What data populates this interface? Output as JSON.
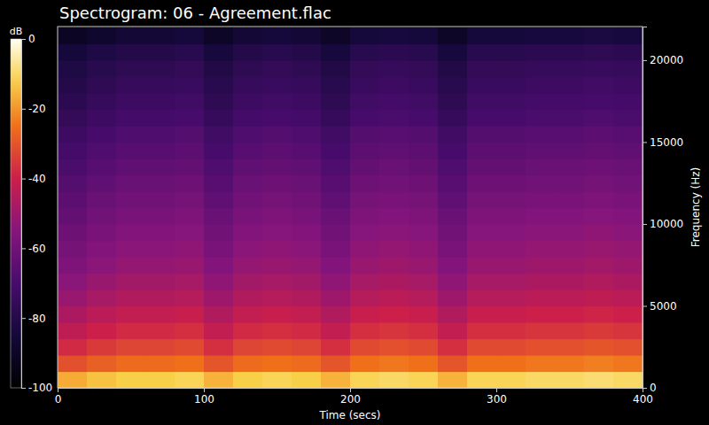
{
  "chart_data": {
    "type": "heatmap",
    "title": "Spectrogram: 06 - Agreement.flac",
    "xlabel": "Time (secs)",
    "ylabel": "Frequency (Hz)",
    "xlim": [
      0,
      400
    ],
    "xticks": [
      0,
      100,
      200,
      300,
      400
    ],
    "ylim": [
      0,
      22050
    ],
    "yticks": [
      0,
      5000,
      10000,
      15000,
      20000
    ],
    "x": [
      10,
      30,
      50,
      70,
      90,
      110,
      130,
      150,
      170,
      190,
      210,
      230,
      250,
      270,
      290,
      310,
      330,
      350,
      370,
      390
    ],
    "y": [
      500,
      1500,
      2500,
      3500,
      4500,
      5500,
      6500,
      7500,
      8500,
      9500,
      10500,
      11500,
      12500,
      13500,
      14500,
      15500,
      16500,
      17500,
      18500,
      19500,
      20500,
      21500
    ],
    "values": [
      [
        -17,
        -14,
        -12,
        -12,
        -11,
        -16,
        -12,
        -11,
        -12,
        -16,
        -11,
        -10,
        -11,
        -16,
        -11,
        -11,
        -10,
        -10,
        -9,
        -10
      ],
      [
        -31,
        -28,
        -26,
        -26,
        -25,
        -30,
        -26,
        -25,
        -26,
        -30,
        -25,
        -24,
        -25,
        -30,
        -25,
        -25,
        -24,
        -24,
        -23,
        -24
      ],
      [
        -38,
        -35,
        -33,
        -33,
        -32,
        -37,
        -33,
        -32,
        -33,
        -37,
        -32,
        -31,
        -32,
        -37,
        -32,
        -32,
        -31,
        -31,
        -30,
        -31
      ],
      [
        -43,
        -40,
        -38,
        -38,
        -37,
        -42,
        -38,
        -37,
        -38,
        -42,
        -37,
        -36,
        -37,
        -42,
        -37,
        -37,
        -36,
        -36,
        -35,
        -36
      ],
      [
        -47,
        -44,
        -42,
        -42,
        -41,
        -46,
        -42,
        -41,
        -42,
        -46,
        -41,
        -40,
        -41,
        -46,
        -41,
        -41,
        -40,
        -40,
        -39,
        -40
      ],
      [
        -51,
        -48,
        -46,
        -46,
        -45,
        -50,
        -46,
        -45,
        -46,
        -50,
        -45,
        -44,
        -45,
        -50,
        -45,
        -45,
        -44,
        -44,
        -43,
        -44
      ],
      [
        -54,
        -51,
        -49,
        -49,
        -48,
        -53,
        -49,
        -48,
        -49,
        -53,
        -48,
        -47,
        -48,
        -53,
        -48,
        -48,
        -47,
        -47,
        -46,
        -47
      ],
      [
        -57,
        -54,
        -52,
        -52,
        -51,
        -56,
        -52,
        -51,
        -52,
        -56,
        -51,
        -50,
        -51,
        -56,
        -51,
        -51,
        -50,
        -50,
        -49,
        -50
      ],
      [
        -59,
        -56,
        -54,
        -54,
        -53,
        -58,
        -54,
        -53,
        -54,
        -58,
        -53,
        -52,
        -53,
        -58,
        -53,
        -53,
        -52,
        -52,
        -51,
        -52
      ],
      [
        -61,
        -58,
        -56,
        -56,
        -55,
        -60,
        -56,
        -55,
        -56,
        -60,
        -55,
        -54,
        -55,
        -60,
        -55,
        -55,
        -54,
        -54,
        -53,
        -54
      ],
      [
        -63,
        -60,
        -58,
        -58,
        -57,
        -62,
        -58,
        -57,
        -58,
        -62,
        -57,
        -56,
        -57,
        -62,
        -57,
        -57,
        -56,
        -56,
        -55,
        -56
      ],
      [
        -65,
        -62,
        -60,
        -60,
        -59,
        -64,
        -60,
        -59,
        -60,
        -64,
        -59,
        -58,
        -59,
        -64,
        -59,
        -59,
        -58,
        -58,
        -57,
        -58
      ],
      [
        -67,
        -64,
        -62,
        -62,
        -61,
        -66,
        -62,
        -61,
        -62,
        -66,
        -61,
        -60,
        -61,
        -66,
        -61,
        -61,
        -60,
        -60,
        -59,
        -60
      ],
      [
        -69,
        -66,
        -64,
        -64,
        -63,
        -68,
        -64,
        -63,
        -64,
        -68,
        -63,
        -62,
        -63,
        -68,
        -63,
        -63,
        -62,
        -62,
        -61,
        -62
      ],
      [
        -71,
        -68,
        -66,
        -66,
        -65,
        -70,
        -66,
        -65,
        -66,
        -70,
        -65,
        -64,
        -65,
        -70,
        -65,
        -65,
        -64,
        -64,
        -63,
        -64
      ],
      [
        -73,
        -70,
        -68,
        -68,
        -67,
        -72,
        -68,
        -67,
        -68,
        -72,
        -67,
        -66,
        -67,
        -72,
        -67,
        -67,
        -66,
        -66,
        -65,
        -66
      ],
      [
        -76,
        -73,
        -71,
        -71,
        -70,
        -75,
        -71,
        -70,
        -71,
        -75,
        -70,
        -69,
        -70,
        -75,
        -70,
        -70,
        -69,
        -69,
        -68,
        -69
      ],
      [
        -78,
        -75,
        -73,
        -73,
        -72,
        -77,
        -73,
        -72,
        -73,
        -77,
        -72,
        -71,
        -72,
        -77,
        -72,
        -72,
        -71,
        -71,
        -70,
        -71
      ],
      [
        -80,
        -77,
        -75,
        -75,
        -74,
        -79,
        -75,
        -74,
        -75,
        -79,
        -74,
        -73,
        -74,
        -79,
        -74,
        -74,
        -73,
        -73,
        -72,
        -73
      ],
      [
        -82,
        -79,
        -77,
        -77,
        -76,
        -81,
        -77,
        -76,
        -77,
        -81,
        -76,
        -75,
        -76,
        -81,
        -76,
        -76,
        -75,
        -75,
        -74,
        -75
      ],
      [
        -85,
        -82,
        -80,
        -80,
        -79,
        -84,
        -80,
        -79,
        -80,
        -84,
        -79,
        -78,
        -79,
        -84,
        -79,
        -79,
        -78,
        -78,
        -77,
        -78
      ],
      [
        -91,
        -88,
        -86,
        -86,
        -85,
        -90,
        -86,
        -85,
        -86,
        -90,
        -85,
        -84,
        -85,
        -90,
        -85,
        -85,
        -84,
        -84,
        -83,
        -84
      ]
    ],
    "colorbar": {
      "label": "dB",
      "range": [
        -100,
        0
      ],
      "ticks": [
        -100,
        -80,
        -60,
        -40,
        -20,
        0
      ]
    }
  }
}
